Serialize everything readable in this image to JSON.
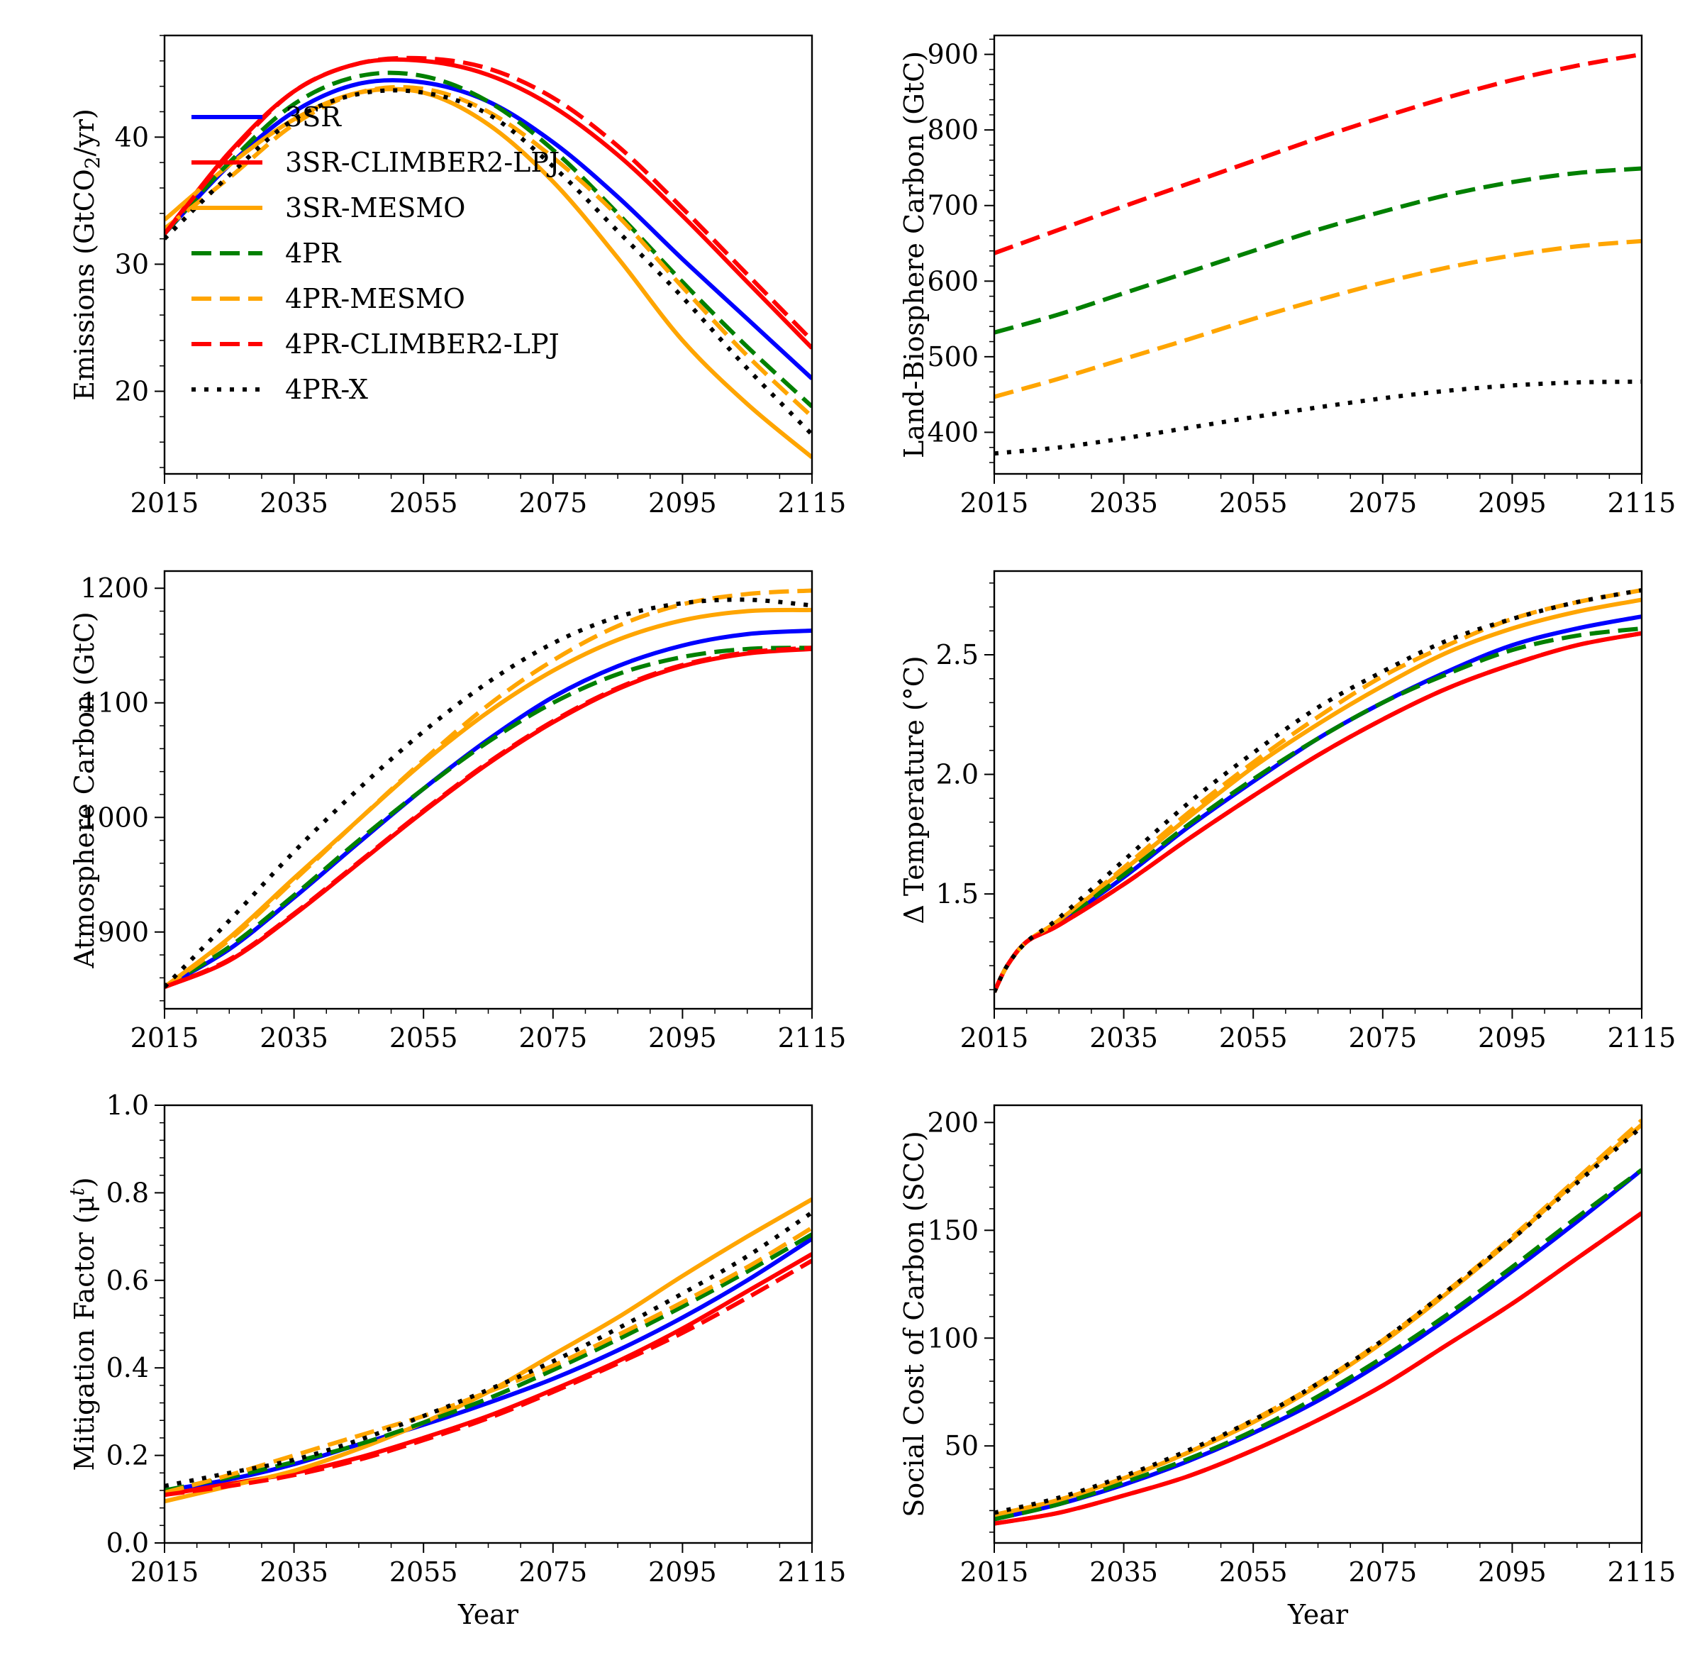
{
  "colors": {
    "3SR": "#0000ff",
    "3SR-CLIMBER2-LPJ": "#ff0000",
    "3SR-MESMO": "#ffa500",
    "4PR": "#008000",
    "4PR-MESMO": "#ffa500",
    "4PR-CLIMBER2-LPJ": "#ff0000",
    "4PR-X": "#000000"
  },
  "legend": [
    "3SR",
    "3SR-CLIMBER2-LPJ",
    "3SR-MESMO",
    "4PR",
    "4PR-MESMO",
    "4PR-CLIMBER2-LPJ",
    "4PR-X"
  ],
  "chart_data": [
    {
      "id": "emissions",
      "type": "line",
      "ylabel": "Emissions (GtCO",
      "ylabel_sub": "2",
      "ylabel_tail": "/yr)",
      "xlabel": "",
      "xlim": [
        2015,
        2115
      ],
      "ylim": [
        13.5,
        48
      ],
      "xticks": [
        "2015",
        "2035",
        "2055",
        "2075",
        "2095",
        "2115"
      ],
      "yticks": [
        "20",
        "30",
        "40"
      ],
      "x": [
        2015,
        2025,
        2035,
        2045,
        2055,
        2065,
        2075,
        2085,
        2095,
        2105,
        2115
      ],
      "series": [
        {
          "name": "3SR",
          "style": "solid",
          "values": [
            32.4,
            37.8,
            42.0,
            44.2,
            44.3,
            42.8,
            39.6,
            35.3,
            30.4,
            25.7,
            21.0
          ]
        },
        {
          "name": "3SR-CLIMBER2-LPJ",
          "style": "solid",
          "values": [
            32.4,
            38.8,
            43.6,
            45.8,
            46.0,
            44.9,
            42.4,
            38.6,
            33.8,
            28.6,
            23.4
          ]
        },
        {
          "name": "3SR-MESMO",
          "style": "solid",
          "values": [
            33.5,
            37.8,
            41.4,
            43.5,
            43.5,
            41.0,
            36.5,
            30.5,
            24.0,
            19.0,
            14.8
          ]
        },
        {
          "name": "4PR",
          "style": "dashed",
          "values": [
            32.4,
            38.0,
            42.6,
            44.8,
            44.8,
            42.8,
            39.0,
            34.0,
            28.6,
            23.5,
            18.8
          ]
        },
        {
          "name": "4PR-MESMO",
          "style": "dashed",
          "values": [
            32.8,
            36.8,
            41.0,
            43.5,
            43.8,
            42.0,
            38.4,
            33.8,
            28.2,
            22.8,
            18.0
          ]
        },
        {
          "name": "4PR-CLIMBER2-LPJ",
          "style": "dashed",
          "values": [
            32.4,
            38.6,
            43.6,
            45.8,
            46.2,
            45.4,
            43.1,
            39.3,
            34.4,
            29.2,
            24.0
          ]
        },
        {
          "name": "4PR-X",
          "style": "dotted",
          "values": [
            32.0,
            37.0,
            41.4,
            43.4,
            43.5,
            41.8,
            37.7,
            32.6,
            27.4,
            21.8,
            16.6
          ]
        }
      ]
    },
    {
      "id": "land-biosphere",
      "type": "line",
      "ylabel": "Land-Biosphere Carbon (GtC)",
      "xlabel": "",
      "xlim": [
        2015,
        2115
      ],
      "ylim": [
        345,
        925
      ],
      "xticks": [
        "2015",
        "2035",
        "2055",
        "2075",
        "2095",
        "2115"
      ],
      "yticks": [
        "400",
        "500",
        "600",
        "700",
        "800",
        "900"
      ],
      "x": [
        2015,
        2025,
        2035,
        2045,
        2055,
        2065,
        2075,
        2085,
        2095,
        2105,
        2115
      ],
      "series": [
        {
          "name": "4PR",
          "style": "dashed",
          "values": [
            532,
            556,
            584,
            612,
            640,
            668,
            692,
            714,
            731,
            743,
            749
          ]
        },
        {
          "name": "4PR-MESMO",
          "style": "dashed",
          "values": [
            447,
            471,
            497,
            523,
            550,
            575,
            598,
            618,
            634,
            646,
            653
          ]
        },
        {
          "name": "4PR-CLIMBER2-LPJ",
          "style": "dashed",
          "values": [
            637,
            668,
            699,
            729,
            759,
            789,
            817,
            843,
            866,
            885,
            900
          ]
        },
        {
          "name": "4PR-X",
          "style": "dotted",
          "values": [
            372,
            380,
            392,
            406,
            420,
            433,
            445,
            455,
            462,
            466,
            467
          ]
        }
      ]
    },
    {
      "id": "atmosphere",
      "type": "line",
      "ylabel": "Atmosphere Carbon (GtC)",
      "xlabel": "",
      "xlim": [
        2015,
        2115
      ],
      "ylim": [
        833,
        1215
      ],
      "xticks": [
        "2015",
        "2035",
        "2055",
        "2075",
        "2095",
        "2115"
      ],
      "yticks": [
        "900",
        "1000",
        "1100",
        "1200"
      ],
      "x": [
        2015,
        2025,
        2035,
        2045,
        2055,
        2065,
        2075,
        2085,
        2095,
        2105,
        2115
      ],
      "series": [
        {
          "name": "3SR",
          "style": "solid",
          "values": [
            852,
            885,
            930,
            978,
            1025,
            1068,
            1105,
            1132,
            1150,
            1160,
            1163
          ]
        },
        {
          "name": "3SR-CLIMBER2-LPJ",
          "style": "solid",
          "values": [
            852,
            875,
            915,
            960,
            1005,
            1047,
            1083,
            1112,
            1132,
            1143,
            1147
          ]
        },
        {
          "name": "3SR-MESMO",
          "style": "solid",
          "values": [
            852,
            895,
            947,
            998,
            1048,
            1092,
            1128,
            1155,
            1172,
            1180,
            1181
          ]
        },
        {
          "name": "4PR",
          "style": "dashed",
          "values": [
            852,
            887,
            932,
            980,
            1025,
            1066,
            1100,
            1125,
            1140,
            1147,
            1148
          ]
        },
        {
          "name": "4PR-MESMO",
          "style": "dashed",
          "values": [
            852,
            893,
            945,
            998,
            1050,
            1098,
            1137,
            1167,
            1186,
            1195,
            1198
          ]
        },
        {
          "name": "4PR-CLIMBER2-LPJ",
          "style": "dashed",
          "values": [
            852,
            876,
            916,
            961,
            1006,
            1048,
            1084,
            1113,
            1133,
            1144,
            1148
          ]
        },
        {
          "name": "4PR-X",
          "style": "dotted",
          "values": [
            852,
            910,
            970,
            1025,
            1075,
            1118,
            1152,
            1175,
            1187,
            1190,
            1185
          ]
        }
      ]
    },
    {
      "id": "temperature",
      "type": "line",
      "ylabel": "Δ Temperature (°C)",
      "xlabel": "",
      "xlim": [
        2015,
        2115
      ],
      "ylim": [
        1.02,
        2.85
      ],
      "xticks": [
        "2015",
        "2035",
        "2055",
        "2075",
        "2095",
        "2115"
      ],
      "yticks": [
        "1.5",
        "2.0",
        "2.5"
      ],
      "x": [
        2015,
        2017,
        2020,
        2025,
        2035,
        2045,
        2055,
        2065,
        2075,
        2085,
        2095,
        2105,
        2115
      ],
      "series": [
        {
          "name": "3SR",
          "style": "solid",
          "values": [
            1.09,
            1.2,
            1.3,
            1.38,
            1.57,
            1.78,
            1.97,
            2.15,
            2.3,
            2.43,
            2.54,
            2.61,
            2.66
          ]
        },
        {
          "name": "3SR-CLIMBER2-LPJ",
          "style": "solid",
          "values": [
            1.09,
            1.2,
            1.3,
            1.37,
            1.54,
            1.73,
            1.91,
            2.08,
            2.23,
            2.36,
            2.46,
            2.54,
            2.59
          ]
        },
        {
          "name": "3SR-MESMO",
          "style": "solid",
          "values": [
            1.09,
            1.2,
            1.3,
            1.39,
            1.6,
            1.82,
            2.03,
            2.21,
            2.37,
            2.51,
            2.61,
            2.68,
            2.73
          ]
        },
        {
          "name": "4PR",
          "style": "dashed",
          "values": [
            1.09,
            1.2,
            1.3,
            1.38,
            1.58,
            1.79,
            1.98,
            2.15,
            2.3,
            2.42,
            2.52,
            2.58,
            2.61
          ]
        },
        {
          "name": "4PR-MESMO",
          "style": "dashed",
          "values": [
            1.09,
            1.2,
            1.3,
            1.39,
            1.61,
            1.84,
            2.05,
            2.24,
            2.41,
            2.54,
            2.65,
            2.72,
            2.77
          ]
        },
        {
          "name": "4PR-CLIMBER2-LPJ",
          "style": "dashed",
          "values": [
            1.09,
            1.2,
            1.3,
            1.37,
            1.54,
            1.73,
            1.91,
            2.08,
            2.23,
            2.36,
            2.46,
            2.54,
            2.59
          ]
        },
        {
          "name": "4PR-X",
          "style": "dotted",
          "values": [
            1.09,
            1.2,
            1.3,
            1.4,
            1.64,
            1.88,
            2.09,
            2.28,
            2.43,
            2.56,
            2.65,
            2.72,
            2.77
          ]
        }
      ]
    },
    {
      "id": "mitigation",
      "type": "line",
      "ylabel": "Mitigation Factor (μ",
      "ylabel_sup": "t",
      "ylabel_tail": ")",
      "xlabel": "Year",
      "xlim": [
        2015,
        2115
      ],
      "ylim": [
        0,
        1
      ],
      "xticks": [
        "2015",
        "2035",
        "2055",
        "2075",
        "2095",
        "2115"
      ],
      "yticks": [
        "0.0",
        "0.2",
        "0.4",
        "0.6",
        "0.8",
        "1.0"
      ],
      "x": [
        2015,
        2025,
        2035,
        2045,
        2055,
        2065,
        2075,
        2085,
        2095,
        2105,
        2115
      ],
      "series": [
        {
          "name": "3SR",
          "style": "solid",
          "values": [
            0.12,
            0.145,
            0.18,
            0.225,
            0.27,
            0.32,
            0.375,
            0.44,
            0.515,
            0.6,
            0.695
          ]
        },
        {
          "name": "3SR-CLIMBER2-LPJ",
          "style": "solid",
          "values": [
            0.11,
            0.135,
            0.16,
            0.195,
            0.24,
            0.29,
            0.35,
            0.415,
            0.49,
            0.575,
            0.66
          ]
        },
        {
          "name": "3SR-MESMO",
          "style": "solid",
          "values": [
            0.095,
            0.13,
            0.165,
            0.215,
            0.275,
            0.345,
            0.43,
            0.515,
            0.61,
            0.7,
            0.785
          ]
        },
        {
          "name": "4PR",
          "style": "dashed",
          "values": [
            0.12,
            0.15,
            0.185,
            0.225,
            0.275,
            0.33,
            0.395,
            0.465,
            0.54,
            0.62,
            0.705
          ]
        },
        {
          "name": "4PR-MESMO",
          "style": "dashed",
          "values": [
            0.115,
            0.155,
            0.2,
            0.245,
            0.29,
            0.345,
            0.405,
            0.475,
            0.55,
            0.63,
            0.72
          ]
        },
        {
          "name": "4PR-CLIMBER2-LPJ",
          "style": "dashed",
          "values": [
            0.11,
            0.13,
            0.155,
            0.19,
            0.235,
            0.285,
            0.345,
            0.41,
            0.48,
            0.56,
            0.645
          ]
        },
        {
          "name": "4PR-X",
          "style": "dotted",
          "values": [
            0.13,
            0.16,
            0.19,
            0.235,
            0.29,
            0.35,
            0.415,
            0.49,
            0.57,
            0.655,
            0.755
          ]
        }
      ]
    },
    {
      "id": "scc",
      "type": "line",
      "ylabel": "Social Cost of Carbon (SCC)",
      "xlabel": "Year",
      "xlim": [
        2015,
        2115
      ],
      "ylim": [
        5,
        208
      ],
      "xticks": [
        "2015",
        "2035",
        "2055",
        "2075",
        "2095",
        "2115"
      ],
      "yticks": [
        "50",
        "100",
        "150",
        "200"
      ],
      "x": [
        2015,
        2025,
        2035,
        2045,
        2055,
        2065,
        2075,
        2085,
        2095,
        2105,
        2115
      ],
      "series": [
        {
          "name": "3SR",
          "style": "solid",
          "values": [
            16,
            23,
            32,
            43,
            56,
            71,
            89,
            109,
            131,
            154,
            178
          ]
        },
        {
          "name": "3SR-CLIMBER2-LPJ",
          "style": "solid",
          "values": [
            14,
            19,
            27,
            36,
            48,
            62,
            78,
            97,
            116,
            137,
            158
          ]
        },
        {
          "name": "3SR-MESMO",
          "style": "solid",
          "values": [
            18,
            25,
            35,
            47,
            61,
            78,
            98,
            121,
            146,
            173,
            199
          ]
        },
        {
          "name": "4PR",
          "style": "dashed",
          "values": [
            16,
            23,
            33,
            44,
            57,
            73,
            91,
            111,
            133,
            156,
            178
          ]
        },
        {
          "name": "4PR-MESMO",
          "style": "dashed",
          "values": [
            18,
            25,
            35,
            47,
            62,
            79,
            99,
            122,
            147,
            174,
            201
          ]
        },
        {
          "name": "4PR-CLIMBER2-LPJ",
          "style": "dashed",
          "values": [
            14,
            19,
            27,
            36,
            48,
            62,
            78,
            97,
            116,
            137,
            158
          ]
        },
        {
          "name": "4PR-X",
          "style": "dotted",
          "values": [
            19,
            26,
            36,
            48,
            62,
            79,
            99,
            122,
            146,
            172,
            198
          ]
        }
      ]
    }
  ]
}
